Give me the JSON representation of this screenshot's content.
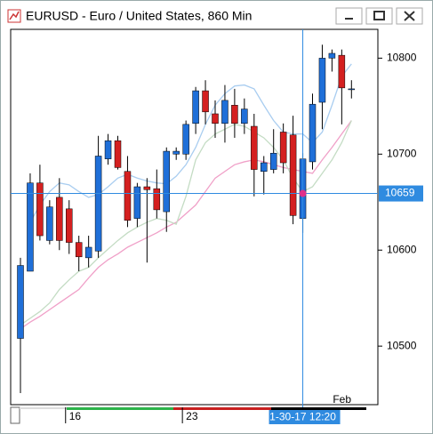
{
  "chart_data": {
    "type": "candlestick",
    "title": "EURUSD - Euro / United States, 860 Min",
    "categories": [
      null,
      null,
      null,
      null,
      null,
      "16",
      null,
      null,
      null,
      null,
      null,
      null,
      null,
      null,
      null,
      null,
      null,
      "23",
      null,
      null,
      null,
      null,
      null,
      null,
      null,
      null,
      null,
      null,
      null,
      "1-30-17 12:20",
      null,
      null,
      null,
      "Feb",
      null
    ],
    "open": [
      10508,
      10578,
      10670,
      10610,
      10655,
      10643,
      10608,
      10592,
      10599,
      10695,
      10714,
      10682,
      10633,
      10666,
      10664,
      10640,
      10700,
      10700,
      10732,
      10766,
      10742,
      10732,
      10751,
      10732,
      10729,
      10682,
      10684,
      10723,
      10720,
      10633,
      10692,
      10754,
      10800,
      10803,
      10768
    ],
    "high": [
      10592,
      10680,
      10689,
      10652,
      10675,
      10652,
      10615,
      10615,
      10719,
      10721,
      10719,
      10698,
      10670,
      10675,
      10684,
      10707,
      10707,
      10735,
      10770,
      10777,
      10756,
      10772,
      10768,
      10758,
      10742,
      10698,
      10726,
      10732,
      10740,
      10701,
      10763,
      10814,
      10809,
      10809,
      10777
    ],
    "low": [
      10451,
      10578,
      10610,
      10606,
      10600,
      10596,
      10578,
      10582,
      10592,
      10689,
      10684,
      10624,
      10624,
      10587,
      10633,
      10619,
      10694,
      10694,
      10721,
      10731,
      10717,
      10712,
      10717,
      10721,
      10656,
      10658,
      10680,
      10680,
      10627,
      10618,
      10684,
      10726,
      10786,
      10731,
      10758
    ],
    "close": [
      10584,
      10670,
      10615,
      10645,
      10610,
      10608,
      10593,
      10603,
      10698,
      10714,
      10686,
      10631,
      10666,
      10663,
      10642,
      10703,
      10703,
      10731,
      10766,
      10744,
      10732,
      10756,
      10732,
      10747,
      10684,
      10691,
      10701,
      10691,
      10636,
      10695,
      10752,
      10800,
      10805,
      10769,
      10768
    ],
    "up_color": "#1f6fd8",
    "down_color": "#d42020",
    "lines": [
      {
        "color": "#a9cdf0",
        "values": [
          null,
          10629,
          10647,
          10661,
          10670,
          10668,
          10661,
          10655,
          10658,
          10666,
          10675,
          10679,
          10675,
          10672,
          10670,
          10669,
          10677,
          10689,
          10707,
          10731,
          10751,
          10763,
          10771,
          10772,
          10768,
          10751,
          10735,
          10723,
          10721,
          10721,
          10712,
          10723,
          10751,
          10781,
          10794
        ]
      },
      {
        "color": "#f0a0c8",
        "values": [
          10518,
          10525,
          10531,
          10538,
          10545,
          10552,
          10559,
          10571,
          10582,
          10590,
          10596,
          10603,
          10608,
          10613,
          10618,
          10624,
          10629,
          10638,
          10647,
          10661,
          10675,
          10682,
          10689,
          10692,
          10694,
          10692,
          10689,
          10686,
          10684,
          10682,
          10680,
          10694,
          10707,
          10721,
          10735
        ]
      },
      {
        "color": "#c4dcc4",
        "values": [
          10522,
          10529,
          10536,
          10545,
          10559,
          10569,
          10578,
          10582,
          10592,
          10601,
          10610,
          10618,
          10624,
          10629,
          10633,
          10631,
          10627,
          10656,
          10694,
          10712,
          10721,
          10726,
          10731,
          10729,
          10723,
          10717,
          10707,
          10694,
          10675,
          10661,
          10666,
          10680,
          10694,
          10712,
          10735
        ]
      }
    ],
    "ylim": [
      10439,
      10830
    ],
    "yticks": [
      10500,
      10600,
      10700,
      10800
    ],
    "crosshair": {
      "value": 10659,
      "index": 29
    }
  }
}
